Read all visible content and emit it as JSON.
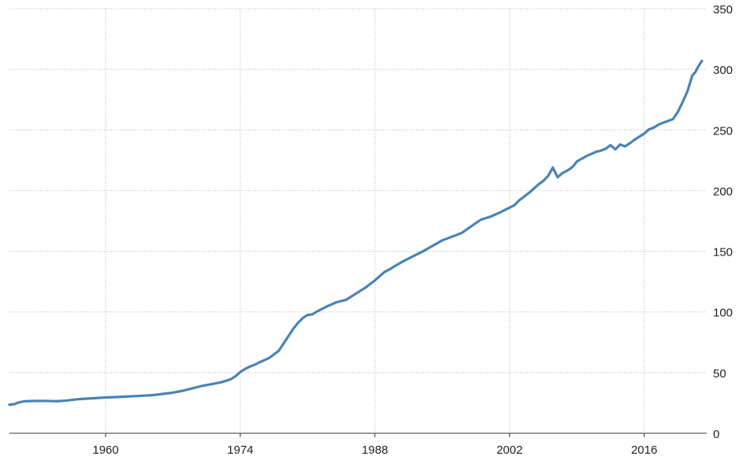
{
  "chart_data": {
    "type": "line",
    "title": "",
    "xlabel": "",
    "ylabel": "",
    "xlim": [
      1950,
      2022.5
    ],
    "ylim": [
      0,
      350
    ],
    "x_ticks": [
      "1960",
      "1974",
      "1988",
      "2002",
      "2016"
    ],
    "y_ticks": [
      "0",
      "50",
      "100",
      "150",
      "200",
      "250",
      "300",
      "350"
    ],
    "grid": true,
    "legend": "none",
    "colors": {
      "series": "#4a83b6",
      "grid": "#b4b4b4",
      "axis": "#333333",
      "text": "#222222"
    },
    "series": [
      {
        "x": [
          1950.0,
          1950.5,
          1951.0,
          1951.5,
          1952.0,
          1953.0,
          1954.0,
          1955.0,
          1956.0,
          1957.0,
          1958.0,
          1959.0,
          1960.0,
          1961.0,
          1962.0,
          1963.0,
          1964.0,
          1965.0,
          1966.0,
          1967.0,
          1968.0,
          1969.0,
          1970.0,
          1971.0,
          1972.0,
          1973.0,
          1973.5,
          1974.0,
          1974.5,
          1975.0,
          1975.5,
          1976.0,
          1977.0,
          1978.0,
          1978.5,
          1979.0,
          1979.5,
          1980.0,
          1980.5,
          1981.0,
          1981.5,
          1982.0,
          1983.0,
          1984.0,
          1985.0,
          1986.0,
          1987.0,
          1988.0,
          1989.0,
          1989.5,
          1990.0,
          1991.0,
          1992.0,
          1993.0,
          1994.0,
          1995.0,
          1996.0,
          1997.0,
          1998.0,
          1999.0,
          2000.0,
          2001.0,
          2002.0,
          2002.5,
          2003.0,
          2004.0,
          2005.0,
          2005.5,
          2006.0,
          2006.5,
          2007.0,
          2007.5,
          2008.0,
          2008.3,
          2008.6,
          2009.0,
          2010.0,
          2011.0,
          2011.5,
          2012.0,
          2012.5,
          2013.0,
          2013.5,
          2014.0,
          2014.5,
          2015.0,
          2015.5,
          2016.0,
          2016.5,
          2017.0,
          2017.5,
          2018.0,
          2018.5,
          2019.0,
          2019.5,
          2020.0,
          2020.5,
          2021.0,
          2021.3,
          2021.6,
          2022.0
        ],
        "y": [
          23.5,
          24.0,
          25.5,
          26.3,
          26.5,
          26.7,
          26.6,
          26.4,
          27.0,
          28.0,
          28.5,
          29.0,
          29.5,
          29.8,
          30.2,
          30.6,
          31.0,
          31.5,
          32.5,
          33.5,
          35.0,
          37.0,
          39.0,
          40.5,
          42.0,
          44.5,
          47.0,
          50.5,
          53.0,
          55.0,
          56.5,
          58.5,
          62.0,
          68.0,
          74.0,
          80.0,
          86.0,
          91.0,
          95.0,
          97.5,
          98.0,
          100.5,
          104.5,
          108.0,
          110.0,
          115.0,
          120.0,
          126.0,
          133.0,
          135.0,
          137.5,
          142.0,
          146.0,
          150.0,
          154.5,
          159.0,
          162.0,
          165.0,
          170.5,
          176.0,
          178.5,
          182.0,
          186.0,
          188.0,
          192.0,
          198.0,
          205.0,
          208.0,
          212.0,
          219.0,
          211.0,
          214.5,
          216.5,
          218.0,
          220.0,
          224.0,
          228.5,
          232.0,
          233.0,
          234.5,
          237.5,
          234.0,
          238.0,
          236.5,
          239.0,
          242.0,
          244.5,
          247.0,
          250.5,
          252.0,
          254.5,
          256.0,
          257.5,
          259.0,
          265.0,
          273.0,
          282.0,
          295.0,
          297.5,
          302.0,
          307.0
        ]
      }
    ]
  }
}
